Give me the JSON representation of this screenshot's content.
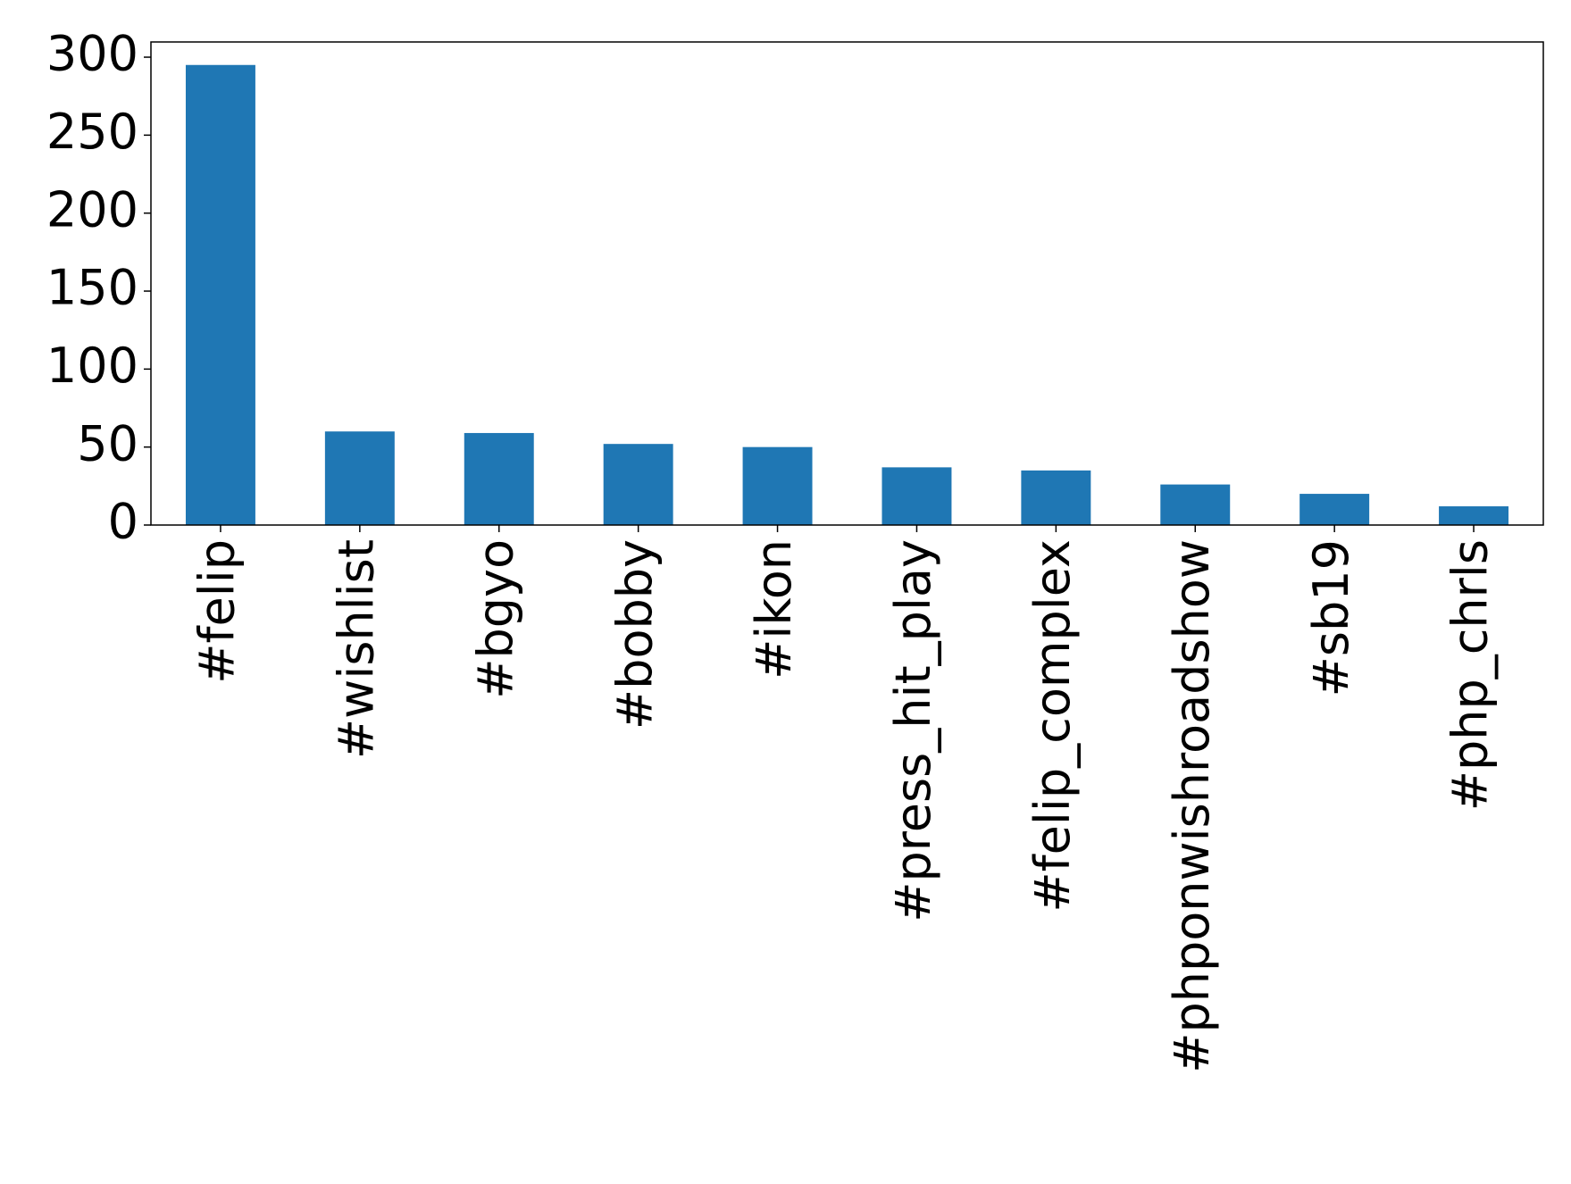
{
  "chart_data": {
    "type": "bar",
    "categories": [
      "#felip",
      "#wishlist",
      "#bgyo",
      "#bobby",
      "#ikon",
      "#press_hit_play",
      "#felip_complex",
      "#phponwishroadshow",
      "#sb19",
      "#php_chrls"
    ],
    "values": [
      295,
      60,
      59,
      52,
      50,
      37,
      35,
      26,
      20,
      12
    ],
    "color": "#1f77b4",
    "ylim": [
      0,
      309.75
    ],
    "yticks": [
      0,
      50,
      100,
      150,
      200,
      250,
      300
    ],
    "grid": false
  }
}
